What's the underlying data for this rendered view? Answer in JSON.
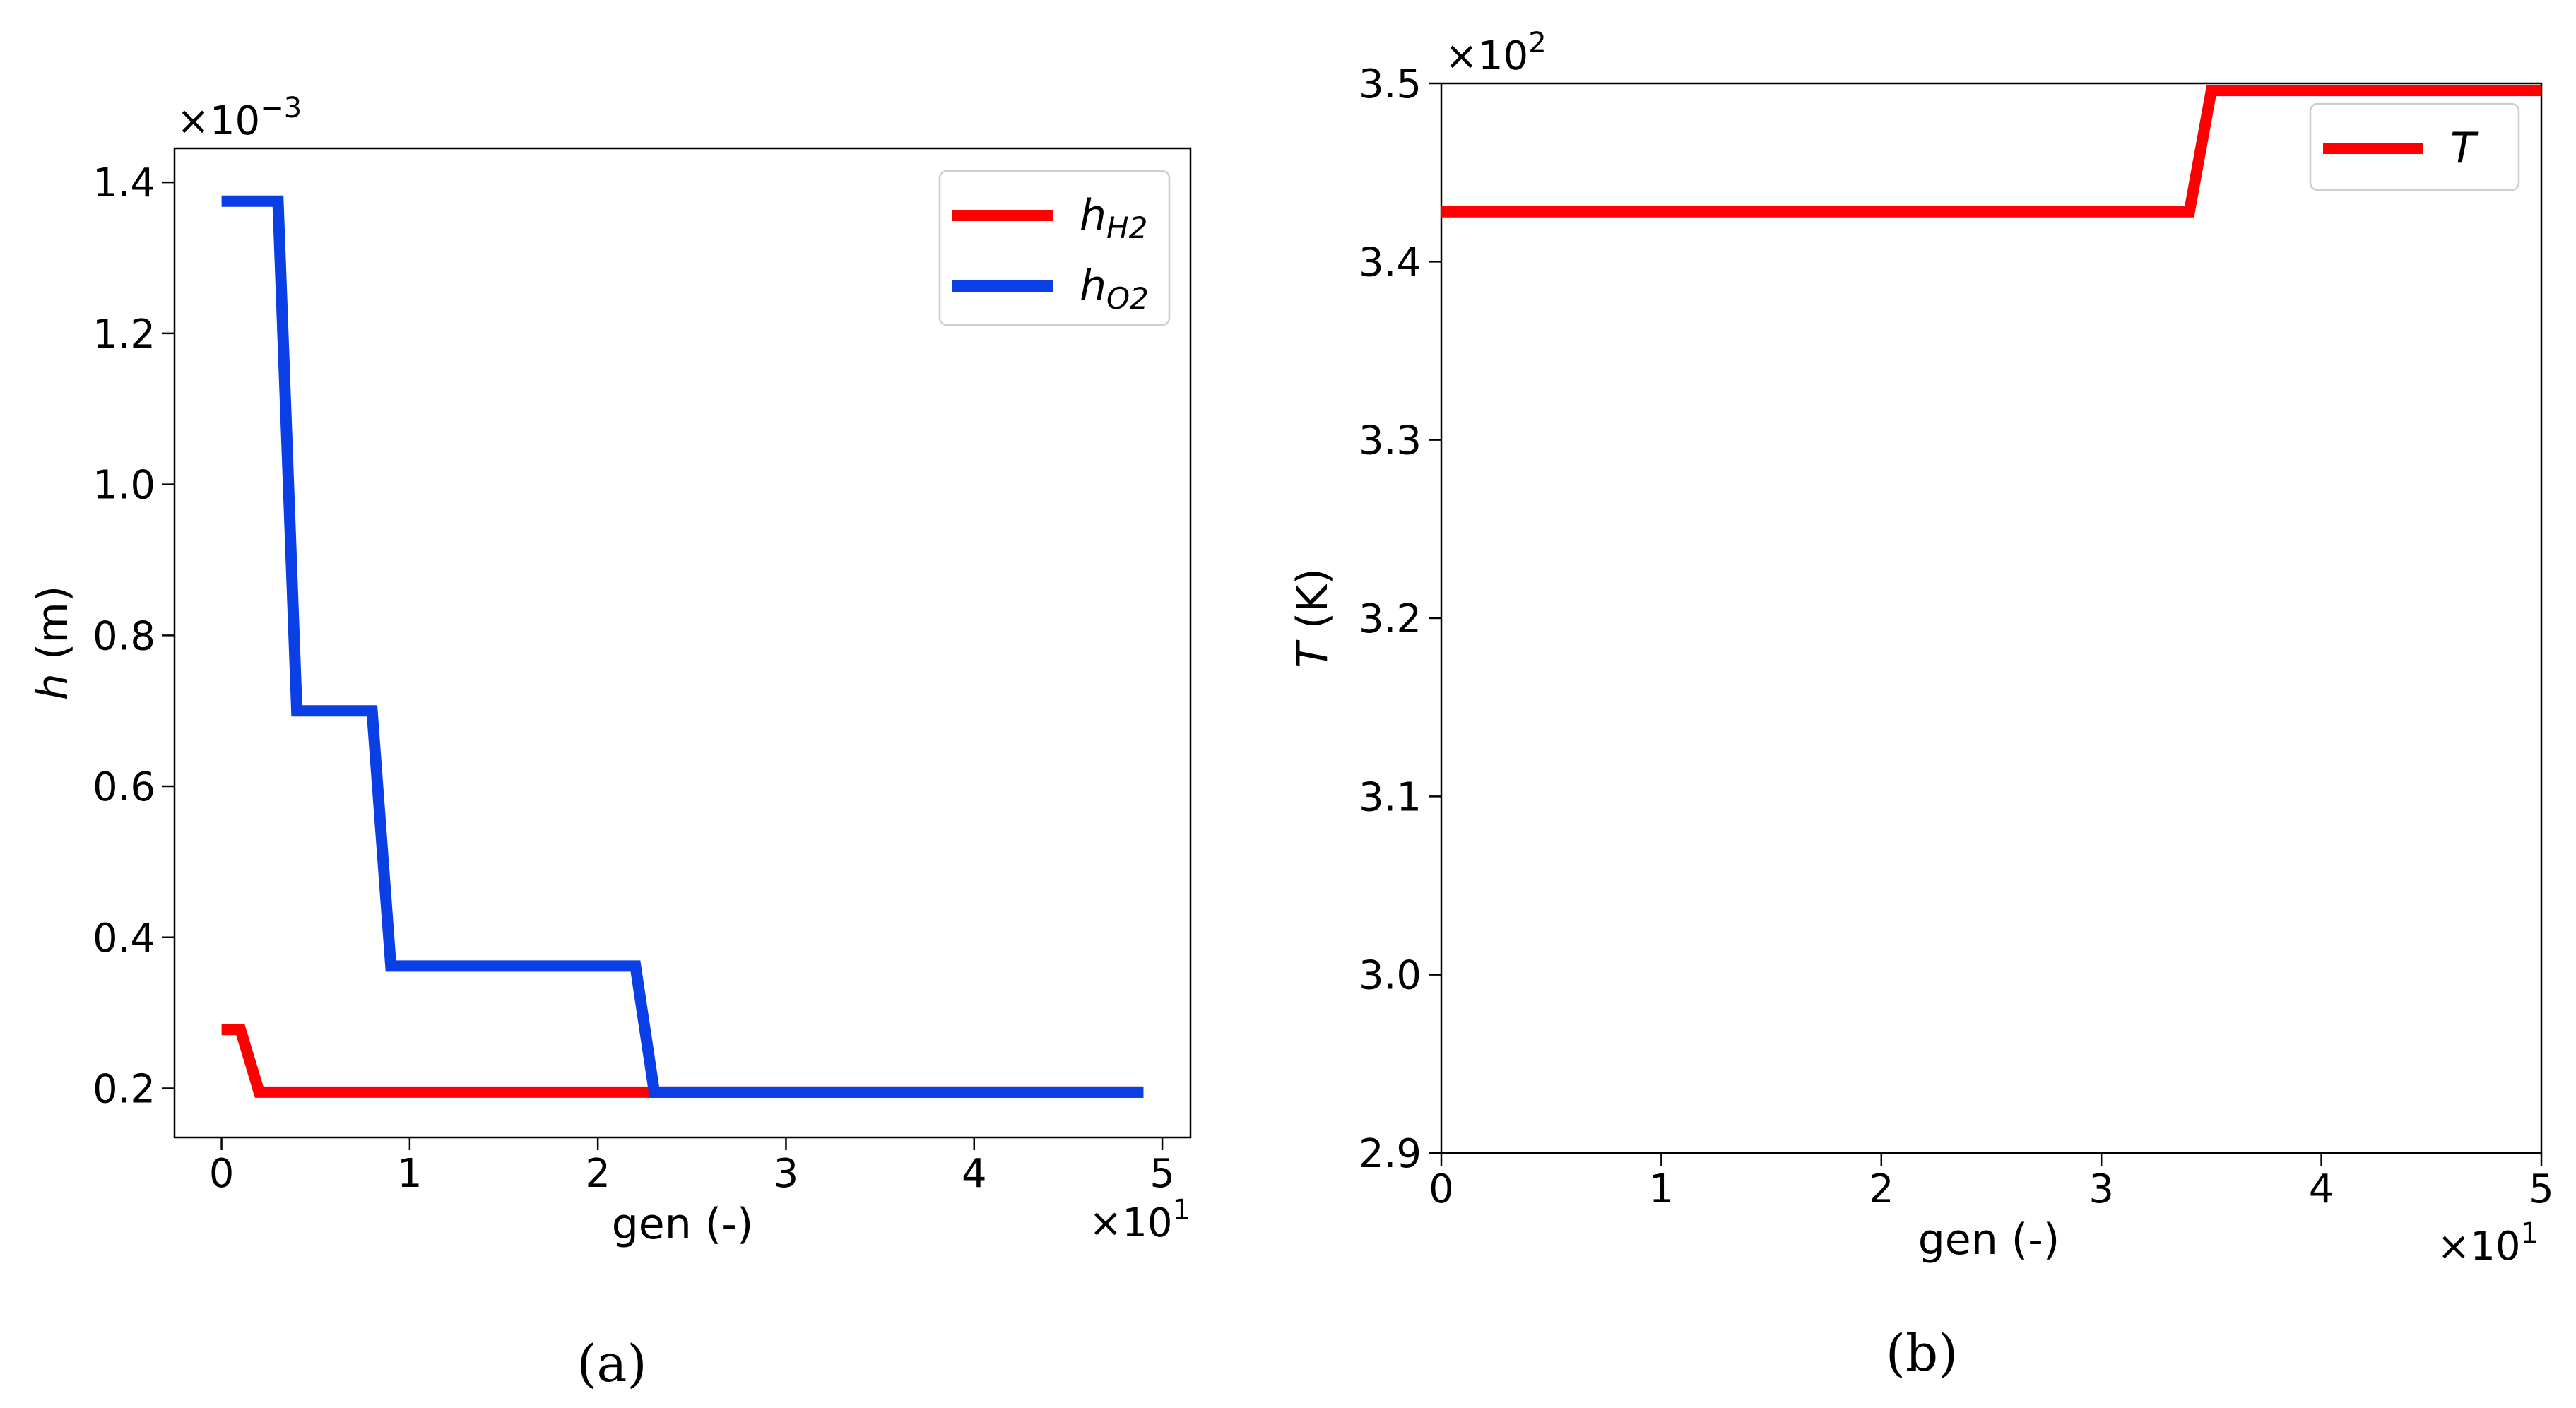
{
  "chart_data": [
    {
      "type": "line",
      "panel_label": "(a)",
      "xlabel": "gen (-)",
      "ylabel_italic": "h",
      "ylabel_rest": " (m)",
      "x_multiplier": "×10",
      "x_multiplier_exp": "1",
      "y_multiplier": "×10",
      "y_multiplier_exp": "−3",
      "xlim": [
        -2.5,
        51.5
      ],
      "ylim": [
        0.135,
        1.445
      ],
      "x_ticks": [
        0,
        10,
        20,
        30,
        40,
        50
      ],
      "x_tick_labels": [
        "0",
        "1",
        "2",
        "3",
        "4",
        "5"
      ],
      "y_ticks": [
        0.2,
        0.4,
        0.6,
        0.8,
        1.0,
        1.2,
        1.4
      ],
      "y_tick_labels": [
        "0.2",
        "0.4",
        "0.6",
        "0.8",
        "1.0",
        "1.2",
        "1.4"
      ],
      "legend_position": "top-right",
      "series": [
        {
          "name": "hH2",
          "legend_main": "h",
          "legend_sub": "H2",
          "color": "#ff0000",
          "x": [
            0,
            1,
            2,
            49
          ],
          "y": [
            0.278,
            0.278,
            0.195,
            0.195
          ]
        },
        {
          "name": "hO2",
          "legend_main": "h",
          "legend_sub": "O2",
          "color": "#0b3fe6",
          "x": [
            0,
            3,
            4,
            8,
            9,
            22,
            23,
            49
          ],
          "y": [
            1.375,
            1.375,
            0.7,
            0.7,
            0.362,
            0.362,
            0.195,
            0.195
          ]
        }
      ]
    },
    {
      "type": "line",
      "panel_label": "(b)",
      "xlabel": "gen (-)",
      "ylabel_italic": "T",
      "ylabel_rest": " (K)",
      "x_multiplier": "×10",
      "x_multiplier_exp": "1",
      "y_multiplier": "×10",
      "y_multiplier_exp": "2",
      "xlim": [
        0,
        50
      ],
      "ylim": [
        2.9,
        3.5
      ],
      "x_ticks": [
        0,
        10,
        20,
        30,
        40,
        50
      ],
      "x_tick_labels": [
        "0",
        "1",
        "2",
        "3",
        "4",
        "5"
      ],
      "y_ticks": [
        2.9,
        3.0,
        3.1,
        3.2,
        3.3,
        3.4,
        3.5
      ],
      "y_tick_labels": [
        "2.9",
        "3.0",
        "3.1",
        "3.2",
        "3.3",
        "3.4",
        "3.5"
      ],
      "legend_position": "top-right",
      "series": [
        {
          "name": "T",
          "legend_main": "T",
          "legend_sub": "",
          "color": "#ff0000",
          "x": [
            0,
            34,
            35,
            50
          ],
          "y": [
            3.428,
            3.428,
            3.496,
            3.496
          ]
        }
      ]
    }
  ]
}
